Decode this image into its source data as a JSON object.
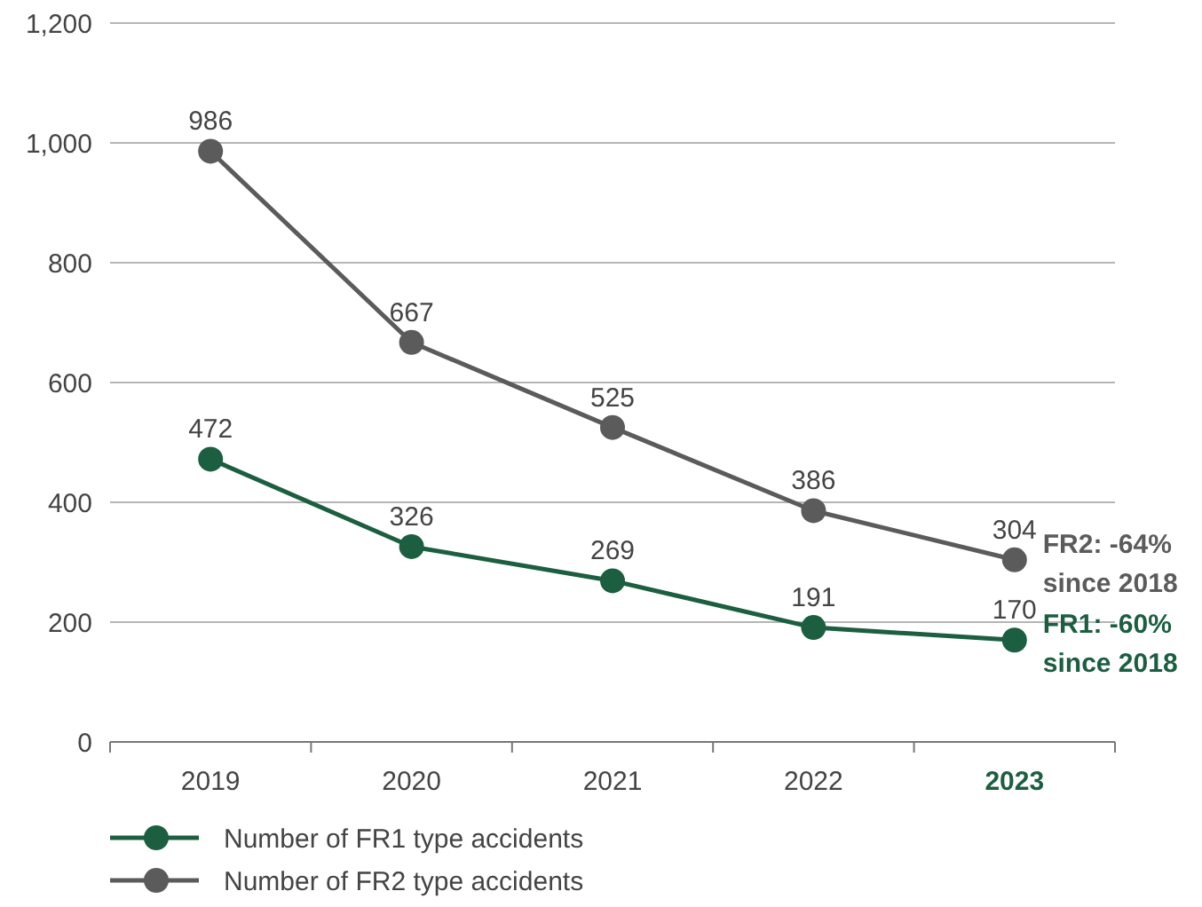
{
  "chart_data": {
    "type": "line",
    "categories": [
      "2019",
      "2020",
      "2021",
      "2022",
      "2023"
    ],
    "series": [
      {
        "name": "Number of FR1 type accidents",
        "color": "#1b5e40",
        "values": [
          472,
          326,
          269,
          191,
          170
        ]
      },
      {
        "name": "Number of FR2 type accidents",
        "color": "#5b5b5b",
        "values": [
          986,
          667,
          525,
          386,
          304
        ]
      }
    ],
    "ylim": [
      0,
      1200
    ],
    "yticks": [
      0,
      {
        "value": 200,
        "label": "200"
      },
      {
        "value": 400,
        "label": "400"
      },
      {
        "value": 600,
        "label": "600"
      },
      {
        "value": 800,
        "label": "800"
      },
      {
        "value": 1000,
        "label": "1,000"
      },
      {
        "value": 1200,
        "label": "1,200"
      }
    ],
    "grid": "y",
    "marker": "circle",
    "line_style": "solid",
    "data_labels": true,
    "legend": "bottom",
    "annotations": [
      {
        "text": "FR2: -64% since 2018",
        "x": "2023",
        "y": 304
      },
      {
        "text": "FR1: -60% since 2018",
        "x": "2023",
        "y": 170
      }
    ]
  }
}
